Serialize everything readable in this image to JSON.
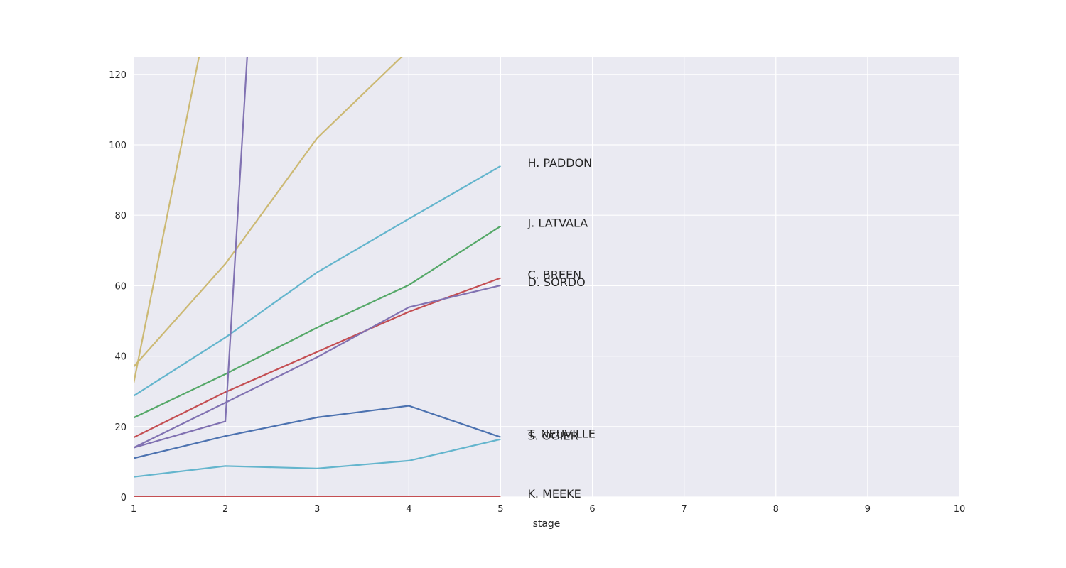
{
  "chart_data": {
    "type": "line",
    "title": "",
    "xlabel": "stage",
    "ylabel": "",
    "xlim": [
      1,
      10
    ],
    "ylim": [
      0,
      125
    ],
    "x_ticks": [
      1,
      2,
      3,
      4,
      5,
      6,
      7,
      8,
      9,
      10
    ],
    "y_ticks": [
      0,
      20,
      40,
      60,
      80,
      100,
      120
    ],
    "grid": true,
    "background_color": "#eaeaf2",
    "series": [
      {
        "name": "H. PADDON",
        "color": "#64b5cd",
        "x": [
          1,
          2,
          3,
          4,
          5
        ],
        "y": [
          28.7,
          45.3,
          63.8,
          79.0,
          94.0
        ]
      },
      {
        "name": "J. LATVALA",
        "color": "#55a868",
        "x": [
          1,
          2,
          3,
          4,
          5
        ],
        "y": [
          22.5,
          34.9,
          48.1,
          60.2,
          76.9
        ]
      },
      {
        "name": "C. BREEN",
        "color": "#c44e52",
        "x": [
          1,
          2,
          3,
          4,
          5
        ],
        "y": [
          16.9,
          29.8,
          41.2,
          52.6,
          62.2
        ]
      },
      {
        "name": "D. SORDO",
        "color": "#8172b2",
        "x": [
          1,
          2,
          3,
          4,
          5
        ],
        "y": [
          14.0,
          26.8,
          39.7,
          53.9,
          60.1
        ]
      },
      {
        "name": "T. NEUVILLE",
        "color": "#4c72b0",
        "x": [
          1,
          2,
          3,
          4,
          5
        ],
        "y": [
          11.0,
          17.3,
          22.6,
          25.9,
          17.0
        ]
      },
      {
        "name": "S. OGIER",
        "color": "#64b5cd",
        "x": [
          1,
          2,
          3,
          4,
          5
        ],
        "y": [
          5.7,
          8.8,
          8.1,
          10.3,
          16.4
        ]
      },
      {
        "name": "K. MEEKE",
        "color": "#c44e52",
        "x": [
          1,
          2,
          3,
          4,
          5
        ],
        "y": [
          0,
          0,
          0,
          0,
          0
        ]
      },
      {
        "name": "",
        "color": "#ccb974",
        "x": [
          1,
          2,
          3,
          4
        ],
        "y": [
          37.0,
          66.2,
          101.9,
          127.0
        ]
      },
      {
        "name": "",
        "color": "#ccb974",
        "x": [
          1,
          1.72
        ],
        "y": [
          32.3,
          126.0
        ]
      },
      {
        "name": "",
        "color": "#8172b2",
        "x": [
          1,
          2,
          2.24
        ],
        "y": [
          14.0,
          21.5,
          126.0
        ]
      }
    ]
  }
}
